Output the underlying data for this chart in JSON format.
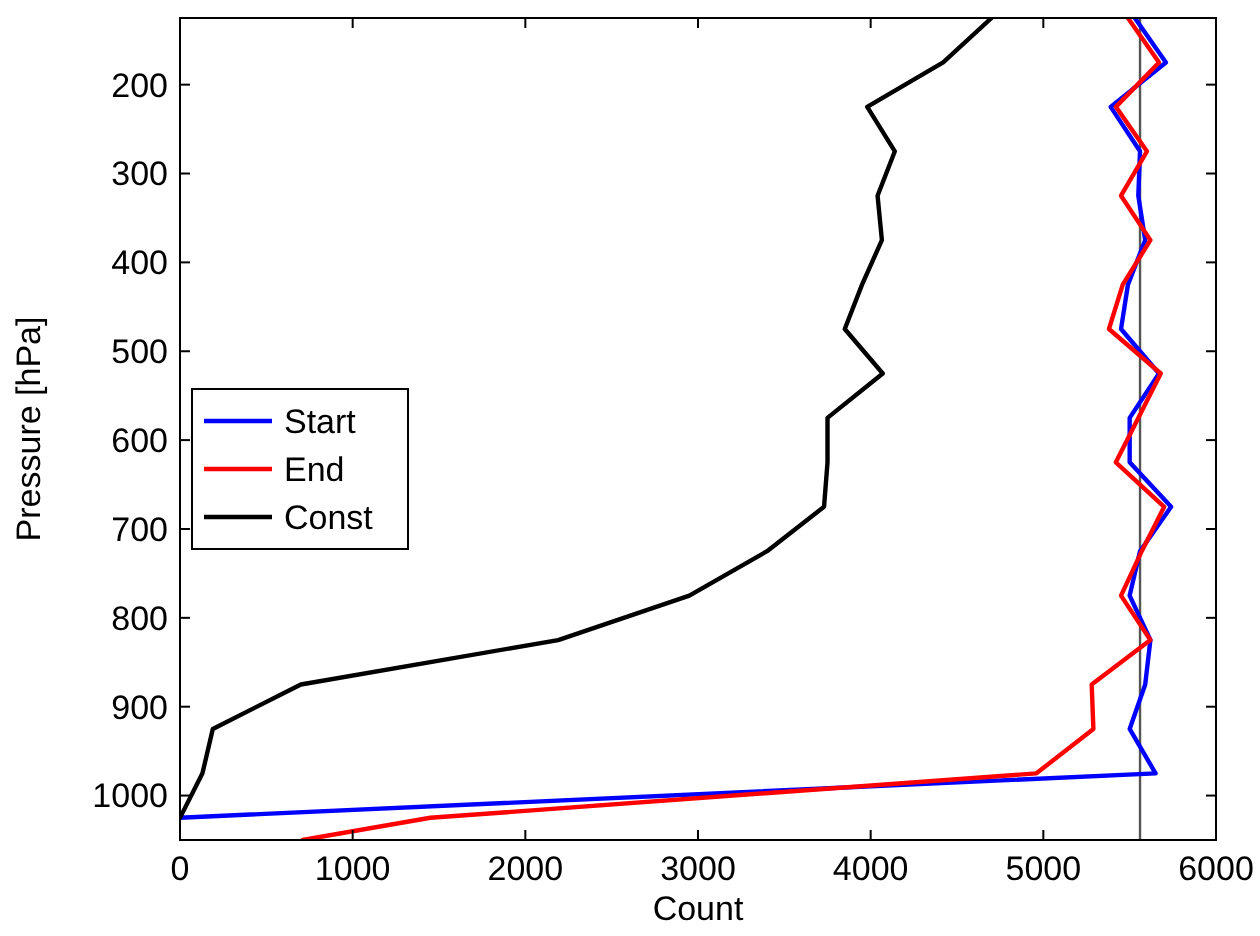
{
  "chart_data": {
    "type": "line",
    "xlabel": "Count",
    "ylabel": "Pressure [hPa]",
    "xlim": [
      0,
      6000
    ],
    "xticks": [
      0,
      1000,
      2000,
      3000,
      4000,
      5000,
      6000
    ],
    "ylim": [
      1050,
      125
    ],
    "yticks": [
      200,
      300,
      400,
      500,
      600,
      700,
      800,
      900,
      1000
    ],
    "grid": false,
    "legend": "left",
    "marker": "none",
    "line_style": "solid",
    "series": [
      {
        "name": "Start",
        "color": "#0000ff",
        "x": [
          5530,
          5710,
          5390,
          5560,
          5550,
          5590,
          5490,
          5450,
          5670,
          5500,
          5500,
          5740,
          5560,
          5500,
          5620,
          5590,
          5500,
          5650,
          0
        ],
        "values": [
          125,
          175,
          225,
          275,
          325,
          375,
          425,
          475,
          525,
          575,
          625,
          675,
          725,
          775,
          825,
          875,
          925,
          975,
          1025
        ]
      },
      {
        "name": "End",
        "color": "#ff0000",
        "x": [
          5490,
          5670,
          5420,
          5600,
          5450,
          5620,
          5460,
          5380,
          5680,
          5550,
          5420,
          5700,
          5570,
          5450,
          5620,
          5280,
          5290,
          4960,
          1450,
          710
        ],
        "values": [
          125,
          175,
          225,
          275,
          325,
          375,
          425,
          475,
          525,
          575,
          625,
          675,
          725,
          775,
          825,
          875,
          925,
          975,
          1025,
          1050
        ]
      },
      {
        "name": "Const",
        "color": "#000000",
        "x": [
          4700,
          4420,
          3980,
          4140,
          4040,
          4065,
          3950,
          3850,
          4070,
          3750,
          3750,
          3730,
          3400,
          2950,
          2190,
          700,
          190,
          130,
          0
        ],
        "values": [
          125,
          175,
          225,
          275,
          325,
          375,
          425,
          475,
          525,
          575,
          625,
          675,
          725,
          775,
          825,
          875,
          925,
          975,
          1025
        ]
      }
    ],
    "ref_lines": [
      {
        "axis": "x",
        "value": 5560,
        "color": "#555555"
      }
    ]
  }
}
